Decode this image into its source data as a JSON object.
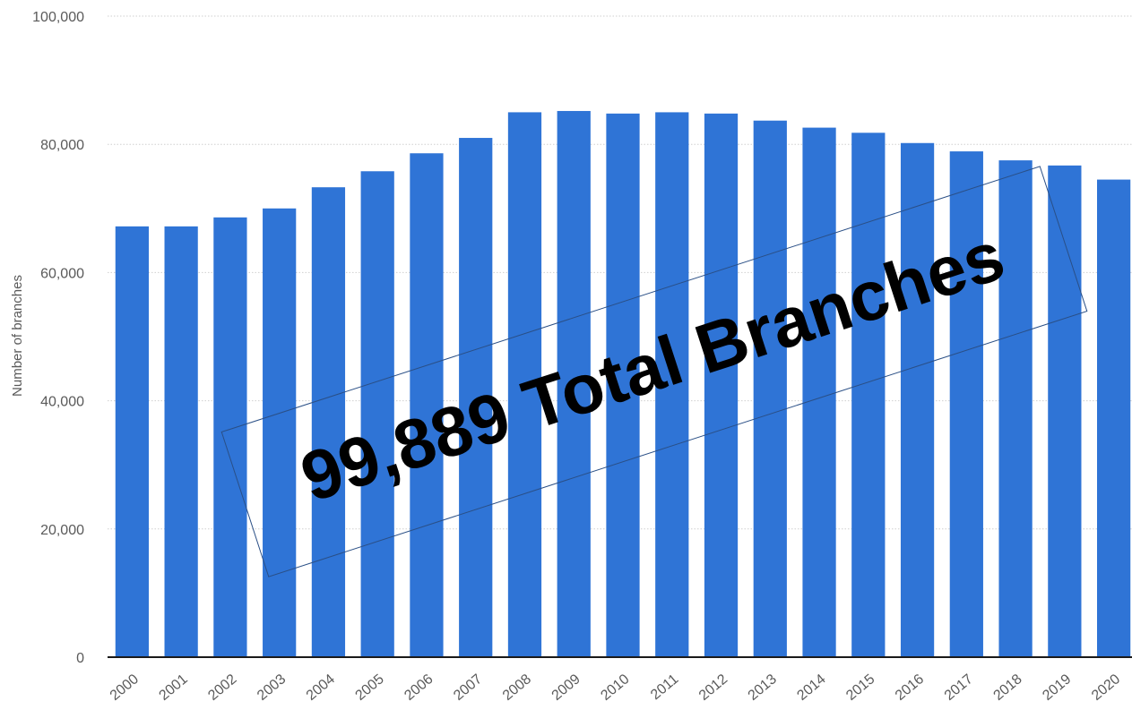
{
  "chart_data": {
    "type": "bar",
    "categories": [
      "2000",
      "2001",
      "2002",
      "2003",
      "2004",
      "2005",
      "2006",
      "2007",
      "2008",
      "2009",
      "2010",
      "2011",
      "2012",
      "2013",
      "2014",
      "2015",
      "2016",
      "2017",
      "2018",
      "2019",
      "2020"
    ],
    "values": [
      67200,
      67200,
      68600,
      70000,
      73300,
      75800,
      78600,
      81000,
      85000,
      85200,
      84800,
      85000,
      84800,
      83700,
      82600,
      81800,
      80200,
      78900,
      77500,
      76700,
      74500
    ],
    "ylim": [
      0,
      100000
    ],
    "yticks": [
      0,
      20000,
      40000,
      60000,
      80000,
      100000
    ],
    "ytick_labels": [
      "0",
      "20,000",
      "40,000",
      "60,000",
      "80,000",
      "100,000"
    ],
    "ylabel": "Number of branches",
    "xlabel": "",
    "grid": true,
    "bar_color": "#2f74d6",
    "annotation": "99,889 Total Branches"
  }
}
